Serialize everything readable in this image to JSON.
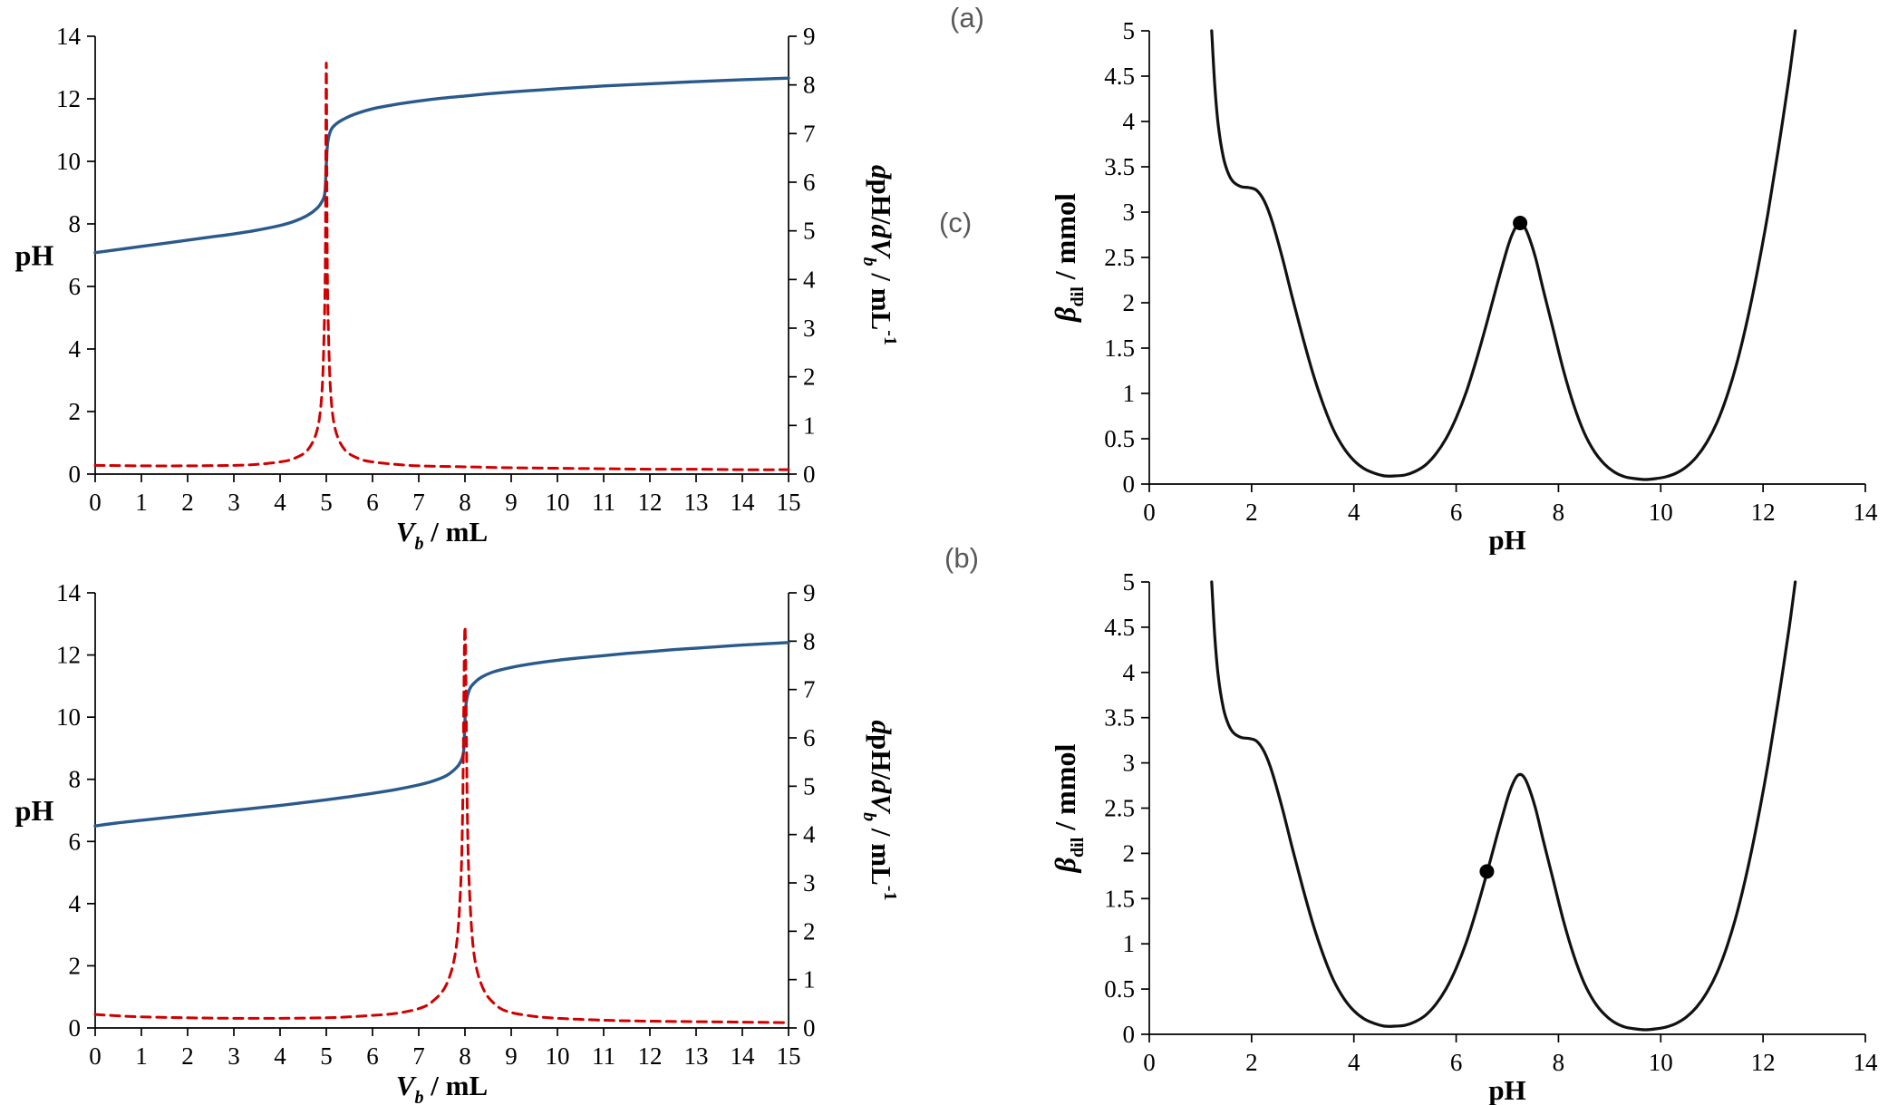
{
  "panel_labels": {
    "a": "(a)",
    "b": "(b)",
    "c": "(c)"
  },
  "colors": {
    "axis": "#000000",
    "tick_text": "#000000",
    "ph_curve": "#2a5a8c",
    "derivative_curve": "#d00000",
    "buffer_curve": "#111111",
    "marker": "#000000",
    "panel_label": "#595959"
  },
  "shared": {
    "buffer_capacity_curve": [
      [
        1.22,
        5
      ],
      [
        1.28,
        4.4
      ],
      [
        1.35,
        3.95
      ],
      [
        1.45,
        3.6
      ],
      [
        1.55,
        3.42
      ],
      [
        1.65,
        3.33
      ],
      [
        1.8,
        3.28
      ],
      [
        1.95,
        3.27
      ],
      [
        2.1,
        3.24
      ],
      [
        2.25,
        3.12
      ],
      [
        2.4,
        2.9
      ],
      [
        2.6,
        2.5
      ],
      [
        2.8,
        2.05
      ],
      [
        3,
        1.62
      ],
      [
        3.2,
        1.22
      ],
      [
        3.4,
        0.88
      ],
      [
        3.6,
        0.6
      ],
      [
        3.8,
        0.4
      ],
      [
        4,
        0.26
      ],
      [
        4.2,
        0.17
      ],
      [
        4.4,
        0.12
      ],
      [
        4.6,
        0.09
      ],
      [
        4.8,
        0.09
      ],
      [
        5,
        0.1
      ],
      [
        5.2,
        0.14
      ],
      [
        5.4,
        0.21
      ],
      [
        5.6,
        0.33
      ],
      [
        5.8,
        0.5
      ],
      [
        6,
        0.73
      ],
      [
        6.2,
        1.02
      ],
      [
        6.4,
        1.38
      ],
      [
        6.6,
        1.78
      ],
      [
        6.8,
        2.2
      ],
      [
        7,
        2.6
      ],
      [
        7.1,
        2.76
      ],
      [
        7.2,
        2.86
      ],
      [
        7.3,
        2.86
      ],
      [
        7.4,
        2.76
      ],
      [
        7.55,
        2.5
      ],
      [
        7.7,
        2.15
      ],
      [
        7.9,
        1.7
      ],
      [
        8.1,
        1.25
      ],
      [
        8.3,
        0.87
      ],
      [
        8.5,
        0.57
      ],
      [
        8.7,
        0.36
      ],
      [
        8.9,
        0.22
      ],
      [
        9.1,
        0.13
      ],
      [
        9.3,
        0.08
      ],
      [
        9.5,
        0.06
      ],
      [
        9.7,
        0.05
      ],
      [
        9.9,
        0.06
      ],
      [
        10.1,
        0.08
      ],
      [
        10.3,
        0.12
      ],
      [
        10.5,
        0.19
      ],
      [
        10.7,
        0.3
      ],
      [
        10.9,
        0.46
      ],
      [
        11.1,
        0.68
      ],
      [
        11.3,
        0.98
      ],
      [
        11.5,
        1.36
      ],
      [
        11.7,
        1.83
      ],
      [
        11.9,
        2.38
      ],
      [
        12.1,
        3
      ],
      [
        12.3,
        3.7
      ],
      [
        12.5,
        4.45
      ],
      [
        12.63,
        5
      ]
    ]
  },
  "chart_data": [
    {
      "id": "titration-curve-a",
      "type": "line",
      "panel": "(a)",
      "xlabel_parts": [
        {
          "t": "V",
          "i": true,
          "b": true
        },
        {
          "t": "b",
          "i": true,
          "b": true,
          "sub": true
        },
        {
          "t": " / mL",
          "b": true
        }
      ],
      "ylabel_parts": [
        {
          "t": "pH",
          "b": true
        }
      ],
      "y2label_parts": [
        {
          "t": "d",
          "i": true,
          "b": true
        },
        {
          "t": "pH/",
          "b": true
        },
        {
          "t": "d",
          "i": true,
          "b": true
        },
        {
          "t": "V",
          "i": true,
          "b": true
        },
        {
          "t": "b",
          "i": true,
          "b": true,
          "sub": true
        },
        {
          "t": "  / mL",
          "b": true
        },
        {
          "t": "-1",
          "b": true,
          "sup": true
        }
      ],
      "xlim": [
        0,
        15
      ],
      "xtick_step": 1,
      "ylim": [
        0,
        14
      ],
      "ytick_step": 2,
      "y2lim": [
        0,
        9
      ],
      "y2tick_step": 1,
      "grid": false,
      "legend": null,
      "series": [
        {
          "name": "pH titration curve",
          "axis": "left",
          "color": "#2a5a8c",
          "width": 3.4,
          "dash": null,
          "points": [
            [
              0,
              7.08
            ],
            [
              0.5,
              7.18
            ],
            [
              1,
              7.28
            ],
            [
              1.5,
              7.38
            ],
            [
              2,
              7.48
            ],
            [
              2.5,
              7.58
            ],
            [
              3,
              7.68
            ],
            [
              3.5,
              7.8
            ],
            [
              4,
              7.95
            ],
            [
              4.3,
              8.08
            ],
            [
              4.6,
              8.28
            ],
            [
              4.8,
              8.5
            ],
            [
              4.9,
              8.7
            ],
            [
              4.97,
              9.0
            ],
            [
              5,
              9.9
            ],
            [
              5.03,
              10.6
            ],
            [
              5.1,
              11.0
            ],
            [
              5.2,
              11.18
            ],
            [
              5.35,
              11.33
            ],
            [
              5.6,
              11.5
            ],
            [
              6,
              11.68
            ],
            [
              6.5,
              11.82
            ],
            [
              7,
              11.93
            ],
            [
              7.5,
              12.02
            ],
            [
              8,
              12.09
            ],
            [
              8.5,
              12.16
            ],
            [
              9,
              12.22
            ],
            [
              9.5,
              12.27
            ],
            [
              10,
              12.32
            ],
            [
              11,
              12.41
            ],
            [
              12,
              12.48
            ],
            [
              13,
              12.55
            ],
            [
              14,
              12.61
            ],
            [
              15,
              12.66
            ]
          ]
        },
        {
          "name": "first derivative dpH/dVb",
          "axis": "right",
          "color": "#d00000",
          "width": 3,
          "dash": "10,7",
          "points": [
            [
              0,
              0.18
            ],
            [
              1,
              0.17
            ],
            [
              2,
              0.17
            ],
            [
              3,
              0.18
            ],
            [
              3.5,
              0.2
            ],
            [
              4,
              0.25
            ],
            [
              4.3,
              0.32
            ],
            [
              4.6,
              0.5
            ],
            [
              4.8,
              0.9
            ],
            [
              4.9,
              1.6
            ],
            [
              4.95,
              2.8
            ],
            [
              4.98,
              4.5
            ],
            [
              5,
              8.45
            ],
            [
              5.02,
              4.5
            ],
            [
              5.05,
              2.8
            ],
            [
              5.1,
              1.6
            ],
            [
              5.2,
              0.9
            ],
            [
              5.4,
              0.5
            ],
            [
              5.7,
              0.32
            ],
            [
              6,
              0.25
            ],
            [
              6.5,
              0.2
            ],
            [
              7,
              0.17
            ],
            [
              8,
              0.15
            ],
            [
              9,
              0.13
            ],
            [
              10,
              0.12
            ],
            [
              11,
              0.11
            ],
            [
              12,
              0.1
            ],
            [
              13,
              0.1
            ],
            [
              14,
              0.09
            ],
            [
              15,
              0.09
            ]
          ]
        }
      ],
      "markers": []
    },
    {
      "id": "buffer-capacity-curve-c",
      "type": "line",
      "panel": "(c)",
      "xlabel_parts": [
        {
          "t": "pH",
          "b": true
        }
      ],
      "ylabel_parts": [
        {
          "t": "β",
          "i": true,
          "b": true
        },
        {
          "t": "dil",
          "b": true,
          "sub": true
        },
        {
          "t": " / mmol",
          "b": true
        }
      ],
      "xlim": [
        0,
        14
      ],
      "xtick_step": 2,
      "ylim": [
        0,
        5
      ],
      "ytick_step": 0.5,
      "grid": false,
      "legend": null,
      "series": [
        {
          "name": "buffer capacity vs pH",
          "axis": "left",
          "color": "#111111",
          "width": 3.2,
          "dash": null,
          "points_ref": "shared.buffer_capacity_curve"
        }
      ],
      "markers": [
        {
          "x": 7.25,
          "y": 2.88
        }
      ]
    },
    {
      "id": "titration-curve-b",
      "type": "line",
      "panel": "(b)",
      "xlabel_parts": [
        {
          "t": "V",
          "i": true,
          "b": true
        },
        {
          "t": "b",
          "i": true,
          "b": true,
          "sub": true
        },
        {
          "t": " / mL",
          "b": true
        }
      ],
      "ylabel_parts": [
        {
          "t": "pH",
          "b": true
        }
      ],
      "y2label_parts": [
        {
          "t": "d",
          "i": true,
          "b": true
        },
        {
          "t": "pH/",
          "b": true
        },
        {
          "t": "d",
          "i": true,
          "b": true
        },
        {
          "t": "V",
          "i": true,
          "b": true
        },
        {
          "t": "b",
          "i": true,
          "b": true,
          "sub": true
        },
        {
          "t": "  / mL",
          "b": true
        },
        {
          "t": "-1",
          "b": true,
          "sup": true
        }
      ],
      "xlim": [
        0,
        15
      ],
      "xtick_step": 1,
      "ylim": [
        0,
        14
      ],
      "ytick_step": 2,
      "y2lim": [
        0,
        9
      ],
      "y2tick_step": 1,
      "grid": false,
      "legend": null,
      "series": [
        {
          "name": "pH titration curve",
          "axis": "left",
          "color": "#2a5a8c",
          "width": 3.4,
          "dash": null,
          "points": [
            [
              0,
              6.5
            ],
            [
              0.5,
              6.6
            ],
            [
              1,
              6.68
            ],
            [
              1.5,
              6.76
            ],
            [
              2,
              6.84
            ],
            [
              2.5,
              6.92
            ],
            [
              3,
              7
            ],
            [
              3.5,
              7.08
            ],
            [
              4,
              7.16
            ],
            [
              4.5,
              7.25
            ],
            [
              5,
              7.34
            ],
            [
              5.5,
              7.44
            ],
            [
              6,
              7.55
            ],
            [
              6.5,
              7.67
            ],
            [
              7,
              7.82
            ],
            [
              7.3,
              7.94
            ],
            [
              7.6,
              8.12
            ],
            [
              7.8,
              8.35
            ],
            [
              7.9,
              8.55
            ],
            [
              7.97,
              8.9
            ],
            [
              8,
              9.9
            ],
            [
              8.03,
              10.5
            ],
            [
              8.1,
              10.9
            ],
            [
              8.2,
              11.1
            ],
            [
              8.35,
              11.28
            ],
            [
              8.6,
              11.45
            ],
            [
              9,
              11.6
            ],
            [
              9.5,
              11.73
            ],
            [
              10,
              11.83
            ],
            [
              10.5,
              11.91
            ],
            [
              11,
              11.98
            ],
            [
              11.5,
              12.05
            ],
            [
              12,
              12.11
            ],
            [
              12.5,
              12.17
            ],
            [
              13,
              12.22
            ],
            [
              13.5,
              12.27
            ],
            [
              14,
              12.32
            ],
            [
              14.5,
              12.36
            ],
            [
              15,
              12.4
            ]
          ]
        },
        {
          "name": "first derivative dpH/dVb",
          "axis": "right",
          "color": "#d00000",
          "width": 3,
          "dash": "10,7",
          "points": [
            [
              0,
              0.28
            ],
            [
              0.5,
              0.25
            ],
            [
              1,
              0.23
            ],
            [
              2,
              0.21
            ],
            [
              3,
              0.2
            ],
            [
              4,
              0.2
            ],
            [
              5,
              0.21
            ],
            [
              5.5,
              0.23
            ],
            [
              6,
              0.26
            ],
            [
              6.5,
              0.3
            ],
            [
              7,
              0.4
            ],
            [
              7.3,
              0.55
            ],
            [
              7.6,
              0.9
            ],
            [
              7.8,
              1.6
            ],
            [
              7.9,
              2.8
            ],
            [
              7.95,
              4.5
            ],
            [
              8,
              8.3
            ],
            [
              8.05,
              4.5
            ],
            [
              8.1,
              2.8
            ],
            [
              8.2,
              1.5
            ],
            [
              8.4,
              0.8
            ],
            [
              8.7,
              0.45
            ],
            [
              9,
              0.32
            ],
            [
              9.5,
              0.24
            ],
            [
              10,
              0.2
            ],
            [
              11,
              0.16
            ],
            [
              12,
              0.14
            ],
            [
              13,
              0.13
            ],
            [
              14,
              0.12
            ],
            [
              15,
              0.11
            ]
          ]
        }
      ],
      "markers": []
    },
    {
      "id": "buffer-capacity-curve-d",
      "type": "line",
      "panel": "",
      "xlabel_parts": [
        {
          "t": "pH",
          "b": true
        }
      ],
      "ylabel_parts": [
        {
          "t": "β",
          "i": true,
          "b": true
        },
        {
          "t": "dil",
          "b": true,
          "sub": true
        },
        {
          "t": " / mmol",
          "b": true
        }
      ],
      "xlim": [
        0,
        14
      ],
      "xtick_step": 2,
      "ylim": [
        0,
        5
      ],
      "ytick_step": 0.5,
      "grid": false,
      "legend": null,
      "series": [
        {
          "name": "buffer capacity vs pH",
          "axis": "left",
          "color": "#111111",
          "width": 3.2,
          "dash": null,
          "points_ref": "shared.buffer_capacity_curve"
        }
      ],
      "markers": [
        {
          "x": 6.6,
          "y": 1.8
        }
      ]
    }
  ]
}
